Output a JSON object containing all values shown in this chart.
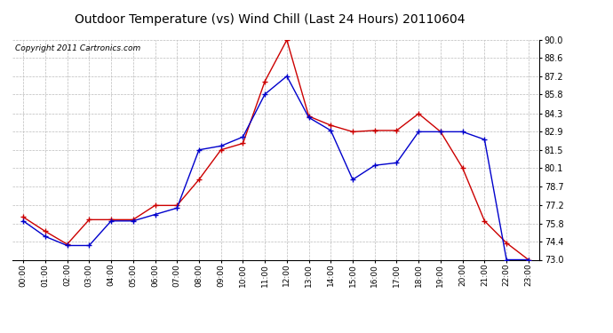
{
  "title": "Outdoor Temperature (vs) Wind Chill (Last 24 Hours) 20110604",
  "copyright": "Copyright 2011 Cartronics.com",
  "hours": [
    "00:00",
    "01:00",
    "02:00",
    "03:00",
    "04:00",
    "05:00",
    "06:00",
    "07:00",
    "08:00",
    "09:00",
    "10:00",
    "11:00",
    "12:00",
    "13:00",
    "14:00",
    "15:00",
    "16:00",
    "17:00",
    "18:00",
    "19:00",
    "20:00",
    "21:00",
    "22:00",
    "23:00"
  ],
  "outdoor_temp": [
    76.3,
    75.2,
    74.2,
    76.1,
    76.1,
    76.1,
    77.2,
    77.2,
    79.2,
    81.5,
    82.0,
    86.8,
    90.0,
    84.1,
    83.4,
    82.9,
    83.0,
    83.0,
    84.3,
    82.9,
    80.1,
    76.0,
    74.3,
    73.0
  ],
  "wind_chill": [
    76.0,
    74.8,
    74.1,
    74.1,
    76.0,
    76.0,
    76.5,
    77.0,
    81.5,
    81.8,
    82.5,
    85.8,
    87.2,
    84.0,
    83.0,
    79.2,
    80.3,
    80.5,
    82.9,
    82.9,
    82.9,
    82.3,
    73.0,
    73.0
  ],
  "ylim": [
    73.0,
    90.0
  ],
  "yticks": [
    73.0,
    74.4,
    75.8,
    77.2,
    78.7,
    80.1,
    81.5,
    82.9,
    84.3,
    85.8,
    87.2,
    88.6,
    90.0
  ],
  "temp_color": "#cc0000",
  "chill_color": "#0000cc",
  "grid_color": "#bbbbbb",
  "bg_color": "#ffffff",
  "plot_bg_color": "#ffffff",
  "title_fontsize": 10,
  "copyright_fontsize": 6.5,
  "marker": "+"
}
